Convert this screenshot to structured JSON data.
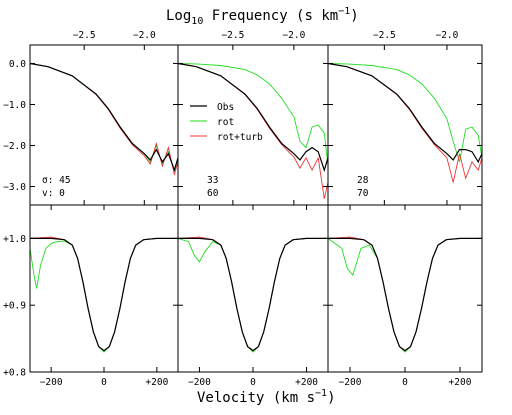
{
  "top_axis": {
    "label_main": "Log",
    "label_sub": "10",
    "label_rest": " Frequency (s km",
    "label_sup": "−1",
    "label_end": ")",
    "ticks": [
      "−2.5",
      "−2.0"
    ]
  },
  "bottom_axis": {
    "label_main": "Velocity (km s",
    "label_sup": "−1",
    "label_end": ")",
    "ticks": [
      "−200",
      "0",
      "+200"
    ]
  },
  "top_y_ticks": [
    "0.0",
    "−1.0",
    "−2.0",
    "−3.0"
  ],
  "bottom_y_ticks": [
    "+1.0",
    "+0.9",
    "+0.8"
  ],
  "legend": [
    {
      "label": "Obs",
      "color": "#000000"
    },
    {
      "label": "rot",
      "color": "#22dd22"
    },
    {
      "label": "rot+turb",
      "color": "#ee3333"
    }
  ],
  "panels": [
    {
      "sigma_label": "σ: 45",
      "v_label": "v: 0"
    },
    {
      "sigma_label": "33",
      "v_label": "60"
    },
    {
      "sigma_label": "28",
      "v_label": "70"
    }
  ],
  "chart_data": [
    {
      "type": "line",
      "description_scope": "top row: log amplitude of Fourier transform vs log frequency",
      "xlabel": "Log10 Frequency (s km^-1)",
      "xlim": [
        -2.95,
        -1.72
      ],
      "ylim": [
        -3.45,
        0.45
      ],
      "grid": false,
      "panels": [
        {
          "series": [
            {
              "name": "Obs",
              "x": [
                -2.95,
                -2.8,
                -2.6,
                -2.4,
                -2.3,
                -2.2,
                -2.1,
                -2.0,
                -1.95,
                -1.9,
                -1.85,
                -1.8,
                -1.75,
                -1.72
              ],
              "y": [
                0.0,
                -0.08,
                -0.3,
                -0.75,
                -1.1,
                -1.55,
                -1.95,
                -2.2,
                -2.35,
                -2.1,
                -2.4,
                -2.2,
                -2.6,
                -2.3
              ]
            },
            {
              "name": "rot",
              "x": [
                -2.95,
                -2.8,
                -2.6,
                -2.4,
                -2.3,
                -2.2,
                -2.1,
                -2.0,
                -1.95,
                -1.9,
                -1.85,
                -1.8,
                -1.75,
                -1.72
              ],
              "y": [
                0.0,
                -0.08,
                -0.3,
                -0.75,
                -1.1,
                -1.55,
                -1.95,
                -2.2,
                -2.4,
                -2.0,
                -2.45,
                -2.15,
                -2.6,
                -2.3
              ]
            },
            {
              "name": "rot+turb",
              "x": [
                -2.95,
                -2.8,
                -2.6,
                -2.4,
                -2.3,
                -2.2,
                -2.1,
                -2.0,
                -1.95,
                -1.9,
                -1.85,
                -1.8,
                -1.75,
                -1.72
              ],
              "y": [
                0.0,
                -0.08,
                -0.3,
                -0.76,
                -1.12,
                -1.58,
                -1.98,
                -2.25,
                -2.45,
                -1.95,
                -2.5,
                -2.05,
                -2.7,
                -2.4
              ]
            }
          ]
        },
        {
          "series": [
            {
              "name": "Obs",
              "x": [
                -2.95,
                -2.8,
                -2.6,
                -2.4,
                -2.3,
                -2.2,
                -2.1,
                -2.0,
                -1.95,
                -1.9,
                -1.85,
                -1.8,
                -1.75,
                -1.72
              ],
              "y": [
                0.0,
                -0.08,
                -0.3,
                -0.75,
                -1.1,
                -1.55,
                -1.95,
                -2.2,
                -2.35,
                -2.15,
                -2.05,
                -2.15,
                -2.6,
                -2.3
              ]
            },
            {
              "name": "rot",
              "x": [
                -2.95,
                -2.8,
                -2.6,
                -2.4,
                -2.3,
                -2.2,
                -2.1,
                -2.0,
                -1.95,
                -1.9,
                -1.85,
                -1.8,
                -1.75,
                -1.72
              ],
              "y": [
                0.0,
                -0.01,
                -0.05,
                -0.15,
                -0.28,
                -0.5,
                -0.85,
                -1.3,
                -1.9,
                -2.05,
                -1.55,
                -1.5,
                -1.7,
                -2.5
              ]
            },
            {
              "name": "rot+turb",
              "x": [
                -2.95,
                -2.8,
                -2.6,
                -2.4,
                -2.3,
                -2.2,
                -2.1,
                -2.0,
                -1.95,
                -1.9,
                -1.85,
                -1.8,
                -1.75,
                -1.72
              ],
              "y": [
                0.0,
                -0.08,
                -0.3,
                -0.76,
                -1.12,
                -1.58,
                -1.98,
                -2.28,
                -2.55,
                -2.3,
                -2.6,
                -2.3,
                -3.3,
                -2.9
              ]
            }
          ]
        },
        {
          "series": [
            {
              "name": "Obs",
              "x": [
                -2.95,
                -2.8,
                -2.6,
                -2.4,
                -2.3,
                -2.2,
                -2.1,
                -2.0,
                -1.95,
                -1.9,
                -1.85,
                -1.8,
                -1.75,
                -1.72
              ],
              "y": [
                0.0,
                -0.08,
                -0.3,
                -0.75,
                -1.1,
                -1.55,
                -1.95,
                -2.2,
                -2.35,
                -2.1,
                -2.1,
                -2.15,
                -2.4,
                -2.2
              ]
            },
            {
              "name": "rot",
              "x": [
                -2.95,
                -2.8,
                -2.6,
                -2.4,
                -2.3,
                -2.2,
                -2.1,
                -2.0,
                -1.95,
                -1.9,
                -1.85,
                -1.8,
                -1.75,
                -1.72
              ],
              "y": [
                0.0,
                -0.01,
                -0.05,
                -0.15,
                -0.28,
                -0.5,
                -0.85,
                -1.35,
                -1.9,
                -2.4,
                -1.6,
                -1.55,
                -1.75,
                -2.3
              ]
            },
            {
              "name": "rot+turb",
              "x": [
                -2.95,
                -2.8,
                -2.6,
                -2.4,
                -2.3,
                -2.2,
                -2.1,
                -2.0,
                -1.95,
                -1.9,
                -1.85,
                -1.8,
                -1.75,
                -1.72
              ],
              "y": [
                0.0,
                -0.08,
                -0.3,
                -0.76,
                -1.12,
                -1.58,
                -1.98,
                -2.3,
                -2.9,
                -2.2,
                -2.8,
                -2.4,
                -2.6,
                -2.3
              ]
            }
          ]
        }
      ]
    },
    {
      "type": "line",
      "description_scope": "bottom row: normalized line profile vs velocity",
      "xlabel": "Velocity (km s^-1)",
      "xlim": [
        -280,
        280
      ],
      "ylim": [
        0.8,
        1.05
      ],
      "grid": false,
      "panels": [
        {
          "series": [
            {
              "name": "Obs",
              "x": [
                -280,
                -200,
                -150,
                -120,
                -100,
                -80,
                -60,
                -40,
                -20,
                0,
                20,
                40,
                60,
                80,
                100,
                120,
                150,
                200,
                280
              ],
              "y": [
                1.0,
                1.0,
                0.998,
                0.99,
                0.97,
                0.935,
                0.895,
                0.86,
                0.838,
                0.832,
                0.838,
                0.86,
                0.895,
                0.935,
                0.97,
                0.99,
                0.998,
                1.0,
                1.0
              ]
            },
            {
              "name": "rot",
              "x": [
                -280,
                -265,
                -255,
                -240,
                -220,
                -200,
                -180,
                -150,
                -120,
                -100,
                -80,
                -60,
                -40,
                -20,
                0,
                20,
                40,
                60,
                80,
                100,
                120,
                150,
                200,
                280
              ],
              "y": [
                0.985,
                0.945,
                0.925,
                0.96,
                0.985,
                0.992,
                0.995,
                0.996,
                0.99,
                0.97,
                0.935,
                0.895,
                0.86,
                0.838,
                0.83,
                0.838,
                0.86,
                0.895,
                0.935,
                0.97,
                0.99,
                0.998,
                1.0,
                1.0
              ]
            },
            {
              "name": "rot+turb",
              "x": [
                -280,
                -200,
                -150,
                -120,
                -100,
                -80,
                -60,
                -40,
                -20,
                0,
                20,
                40,
                60,
                80,
                100,
                120,
                150,
                200,
                280
              ],
              "y": [
                1.0,
                1.002,
                0.998,
                0.99,
                0.97,
                0.935,
                0.895,
                0.86,
                0.838,
                0.832,
                0.838,
                0.86,
                0.895,
                0.935,
                0.97,
                0.99,
                0.998,
                1.0,
                1.0
              ]
            }
          ]
        },
        {
          "series": [
            {
              "name": "Obs",
              "x": [
                -280,
                -200,
                -150,
                -120,
                -100,
                -80,
                -60,
                -40,
                -20,
                0,
                20,
                40,
                60,
                80,
                100,
                120,
                150,
                200,
                280
              ],
              "y": [
                1.0,
                1.0,
                0.998,
                0.99,
                0.97,
                0.935,
                0.895,
                0.86,
                0.838,
                0.832,
                0.838,
                0.86,
                0.895,
                0.935,
                0.97,
                0.99,
                0.998,
                1.0,
                1.0
              ]
            },
            {
              "name": "rot",
              "x": [
                -280,
                -240,
                -220,
                -200,
                -180,
                -150,
                -120,
                -100,
                -80,
                -60,
                -40,
                -20,
                0,
                20,
                40,
                60,
                80,
                100,
                120,
                150,
                200,
                280
              ],
              "y": [
                1.0,
                0.995,
                0.975,
                0.965,
                0.98,
                0.995,
                0.99,
                0.97,
                0.935,
                0.895,
                0.86,
                0.838,
                0.83,
                0.838,
                0.86,
                0.895,
                0.935,
                0.97,
                0.99,
                0.998,
                1.0,
                1.0
              ]
            },
            {
              "name": "rot+turb",
              "x": [
                -280,
                -200,
                -150,
                -120,
                -100,
                -80,
                -60,
                -40,
                -20,
                0,
                20,
                40,
                60,
                80,
                100,
                120,
                150,
                200,
                280
              ],
              "y": [
                1.0,
                1.002,
                0.998,
                0.99,
                0.97,
                0.935,
                0.895,
                0.86,
                0.838,
                0.832,
                0.838,
                0.86,
                0.895,
                0.935,
                0.97,
                0.99,
                0.998,
                1.0,
                1.0
              ]
            }
          ]
        },
        {
          "series": [
            {
              "name": "Obs",
              "x": [
                -280,
                -200,
                -150,
                -120,
                -100,
                -80,
                -60,
                -40,
                -20,
                0,
                20,
                40,
                60,
                80,
                100,
                120,
                150,
                200,
                280
              ],
              "y": [
                1.0,
                1.0,
                0.998,
                0.99,
                0.97,
                0.935,
                0.895,
                0.86,
                0.838,
                0.832,
                0.838,
                0.86,
                0.895,
                0.935,
                0.97,
                0.99,
                0.998,
                1.0,
                1.0
              ]
            },
            {
              "name": "rot",
              "x": [
                -280,
                -230,
                -210,
                -190,
                -160,
                -130,
                -100,
                -80,
                -60,
                -40,
                -20,
                0,
                20,
                40,
                60,
                80,
                100,
                120,
                150,
                200,
                280
              ],
              "y": [
                1.0,
                0.985,
                0.955,
                0.945,
                0.985,
                0.99,
                0.97,
                0.935,
                0.895,
                0.86,
                0.838,
                0.83,
                0.838,
                0.86,
                0.895,
                0.935,
                0.97,
                0.99,
                0.998,
                1.0,
                1.0
              ]
            },
            {
              "name": "rot+turb",
              "x": [
                -280,
                -200,
                -150,
                -120,
                -100,
                -80,
                -60,
                -40,
                -20,
                0,
                20,
                40,
                60,
                80,
                100,
                120,
                150,
                200,
                280
              ],
              "y": [
                1.0,
                1.002,
                0.998,
                0.99,
                0.97,
                0.935,
                0.895,
                0.86,
                0.838,
                0.832,
                0.838,
                0.86,
                0.895,
                0.935,
                0.97,
                0.99,
                0.998,
                1.0,
                1.0
              ]
            }
          ]
        }
      ]
    }
  ]
}
